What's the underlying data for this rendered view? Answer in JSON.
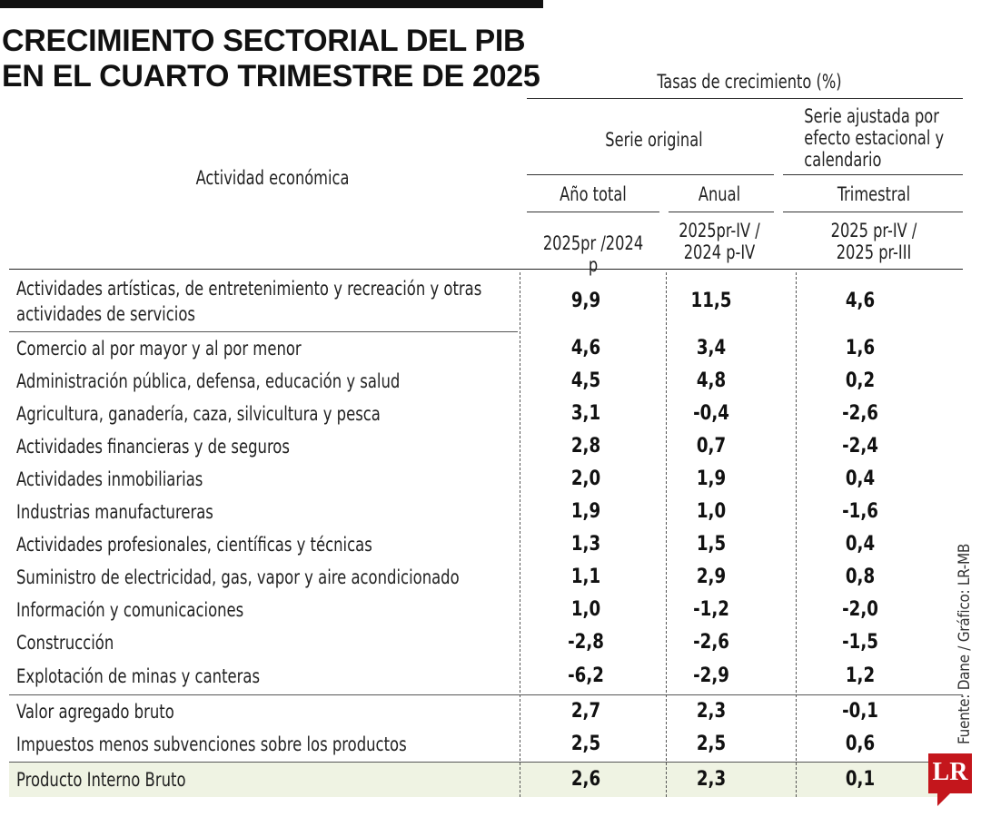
{
  "title": "CRECIMIENTO SECTORIAL DEL PIB EN EL CUARTO TRIMESTRE DE 2025",
  "header": {
    "rates": "Tasas de crecimiento (%)",
    "activity": "Actividad económica",
    "original": "Serie original",
    "adjusted": "Serie ajustada por efecto estacional y calendario",
    "total_year": "Año total",
    "annual": "Anual",
    "quarterly": "Trimestral",
    "p1": "2025pr /2024 p",
    "p2": "2025pr-IV / 2024 p-IV",
    "p3": "2025 pr-IV / 2025 pr-III"
  },
  "source": "Fuente: Dane / Gráfico: LR-MB",
  "logo": "LR",
  "chart_data": {
    "type": "table",
    "title": "CRECIMIENTO SECTORIAL DEL PIB EN EL CUARTO TRIMESTRE DE 2025",
    "columns": [
      "Actividad económica",
      "2025pr /2024 p",
      "2025pr-IV / 2024 p-IV",
      "2025 pr-IV / 2025 pr-III"
    ],
    "rows": [
      {
        "label": "Actividades artísticas, de entretenimiento y recreación y otras actividades de servicios",
        "values": [
          "9,9",
          "11,5",
          "4,6"
        ]
      },
      {
        "label": "Comercio al por mayor y al por menor",
        "values": [
          "4,6",
          "3,4",
          "1,6"
        ]
      },
      {
        "label": "Administración pública, defensa, educación y salud",
        "values": [
          "4,5",
          "4,8",
          "0,2"
        ]
      },
      {
        "label": "Agricultura, ganadería, caza, silvicultura y pesca",
        "values": [
          "3,1",
          "-0,4",
          "-2,6"
        ]
      },
      {
        "label": "Actividades financieras y de seguros",
        "values": [
          "2,8",
          "0,7",
          "-2,4"
        ]
      },
      {
        "label": "Actividades inmobiliarias",
        "values": [
          "2,0",
          "1,9",
          "0,4"
        ]
      },
      {
        "label": "Industrias manufactureras",
        "values": [
          "1,9",
          "1,0",
          "-1,6"
        ]
      },
      {
        "label": "Actividades profesionales, científicas y técnicas",
        "values": [
          "1,3",
          "1,5",
          "0,4"
        ]
      },
      {
        "label": "Suministro de electricidad, gas, vapor y aire acondicionado",
        "values": [
          "1,1",
          "2,9",
          "0,8"
        ]
      },
      {
        "label": "Información y comunicaciones",
        "values": [
          "1,0",
          "-1,2",
          "-2,0"
        ]
      },
      {
        "label": "Construcción",
        "values": [
          "-2,8",
          "-2,6",
          "-1,5"
        ]
      },
      {
        "label": "Explotación de minas y canteras",
        "values": [
          "-6,2",
          "-2,9",
          "1,2"
        ]
      },
      {
        "label": "Valor agregado bruto",
        "values": [
          "2,7",
          "2,3",
          "-0,1"
        ]
      },
      {
        "label": "Impuestos menos subvenciones sobre los productos",
        "values": [
          "2,5",
          "2,5",
          "0,6"
        ]
      },
      {
        "label": "Producto Interno Bruto",
        "values": [
          "2,6",
          "2,3",
          "0,1"
        ]
      }
    ]
  }
}
